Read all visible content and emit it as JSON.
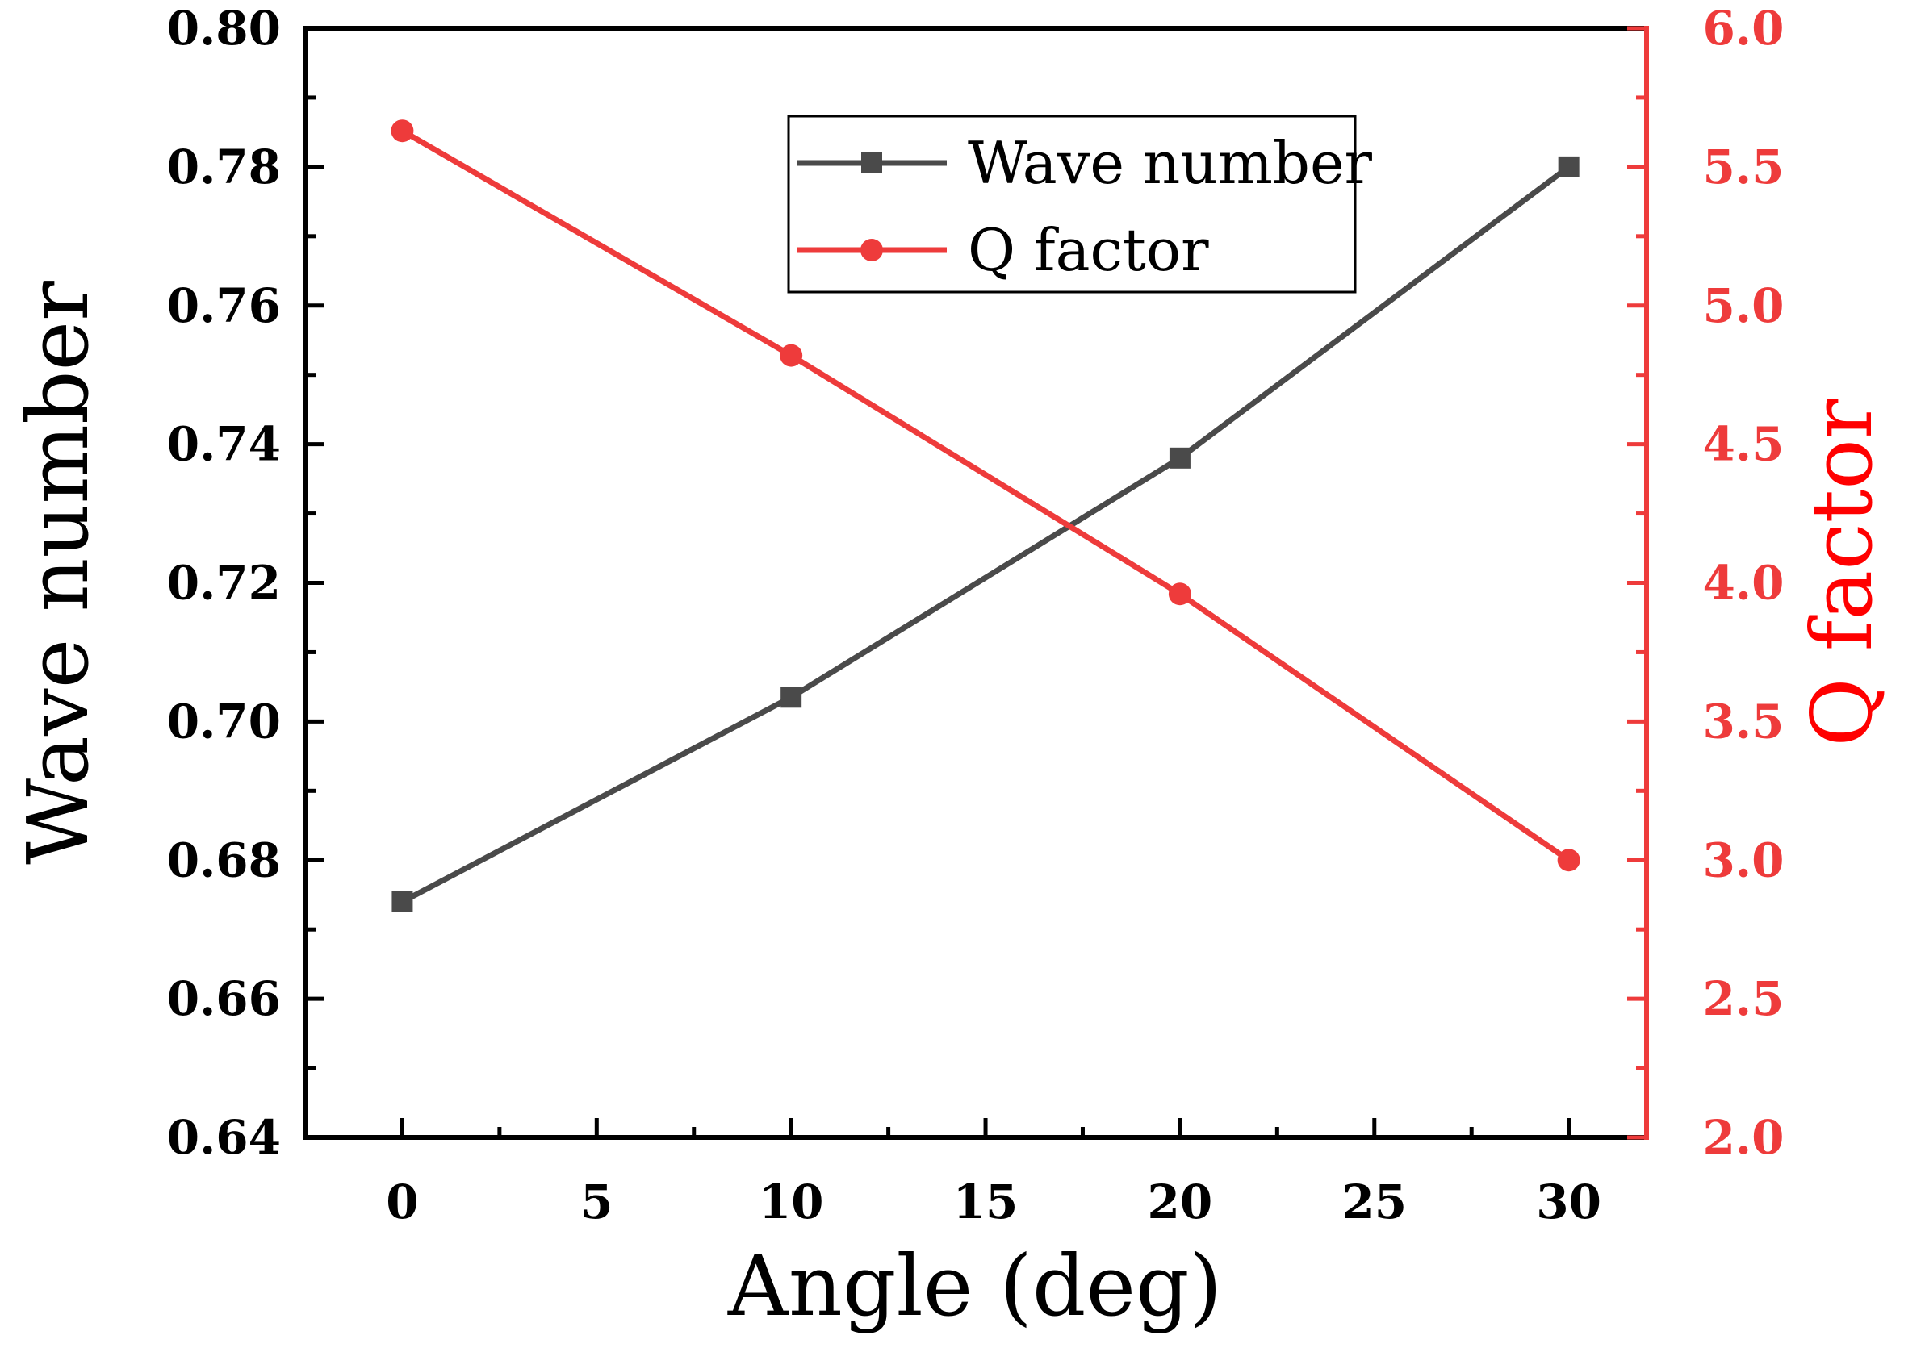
{
  "colors": {
    "wave_series": "#4a4a4a",
    "q_series": "#ee3b3b",
    "left_axis": "#000000",
    "right_axis": "#ee3b3b",
    "right_title": "#ff0000"
  },
  "chart_data": {
    "type": "line",
    "xlabel": "Angle (deg)",
    "ylabel_left": "Wave number",
    "ylabel_right": "Q factor",
    "xlim": [
      -2.5,
      32
    ],
    "ylim_left": [
      0.64,
      0.8
    ],
    "ylim_right": [
      2.0,
      6.0
    ],
    "x_ticks": [
      0,
      5,
      10,
      15,
      20,
      25,
      30
    ],
    "x_tick_labels": [
      "0",
      "5",
      "10",
      "15",
      "20",
      "25",
      "30"
    ],
    "y_left_ticks": [
      0.64,
      0.66,
      0.68,
      0.7,
      0.72,
      0.74,
      0.76,
      0.78,
      0.8
    ],
    "y_left_tick_labels": [
      "0.64",
      "0.66",
      "0.68",
      "0.70",
      "0.72",
      "0.74",
      "0.76",
      "0.78",
      "0.80"
    ],
    "y_right_ticks": [
      2.0,
      2.5,
      3.0,
      3.5,
      4.0,
      4.5,
      5.0,
      5.5,
      6.0
    ],
    "y_right_tick_labels": [
      "2.0",
      "2.5",
      "3.0",
      "3.5",
      "4.0",
      "4.5",
      "5.0",
      "5.5",
      "6.0"
    ],
    "legend_position": "top-center",
    "series": [
      {
        "name": "Wave number",
        "axis": "left",
        "marker": "square",
        "x": [
          0,
          10,
          20,
          30
        ],
        "values": [
          0.674,
          0.7035,
          0.738,
          0.78
        ]
      },
      {
        "name": "Q factor",
        "axis": "right",
        "marker": "circle",
        "x": [
          0,
          10,
          20,
          30
        ],
        "values": [
          5.63,
          4.82,
          3.96,
          3.0
        ]
      }
    ]
  }
}
